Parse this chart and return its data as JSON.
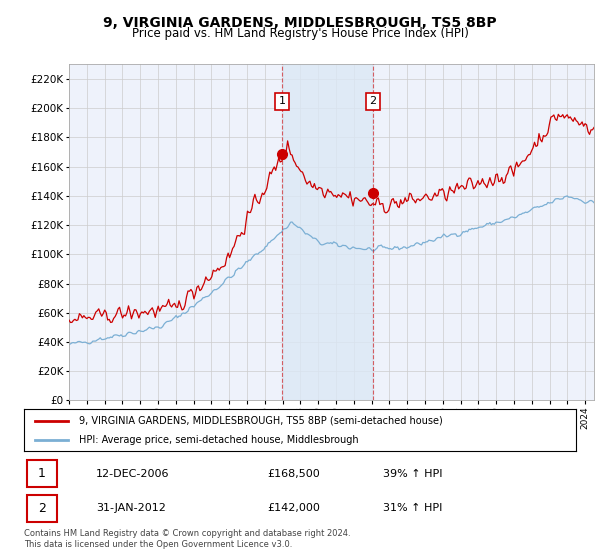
{
  "title": "9, VIRGINIA GARDENS, MIDDLESBROUGH, TS5 8BP",
  "subtitle": "Price paid vs. HM Land Registry's House Price Index (HPI)",
  "ytick_vals": [
    0,
    20000,
    40000,
    60000,
    80000,
    100000,
    120000,
    140000,
    160000,
    180000,
    200000,
    220000
  ],
  "ylim": [
    0,
    230000
  ],
  "xlim_start": 1995.0,
  "xlim_end": 2024.5,
  "purchase1_x": 2006.96,
  "purchase1_y": 168500,
  "purchase2_x": 2012.08,
  "purchase2_y": 142000,
  "legend_line1": "9, VIRGINIA GARDENS, MIDDLESBROUGH, TS5 8BP (semi-detached house)",
  "legend_line2": "HPI: Average price, semi-detached house, Middlesbrough",
  "footer": "Contains HM Land Registry data © Crown copyright and database right 2024.\nThis data is licensed under the Open Government Licence v3.0.",
  "table_row1": [
    "1",
    "12-DEC-2006",
    "£168,500",
    "39% ↑ HPI"
  ],
  "table_row2": [
    "2",
    "31-JAN-2012",
    "£142,000",
    "31% ↑ HPI"
  ],
  "red_color": "#cc0000",
  "blue_color": "#7bafd4",
  "shade_color": "#dce8f5",
  "background_color": "#eef2fb",
  "grid_color": "#cccccc",
  "title_fontsize": 10,
  "subtitle_fontsize": 8.5
}
